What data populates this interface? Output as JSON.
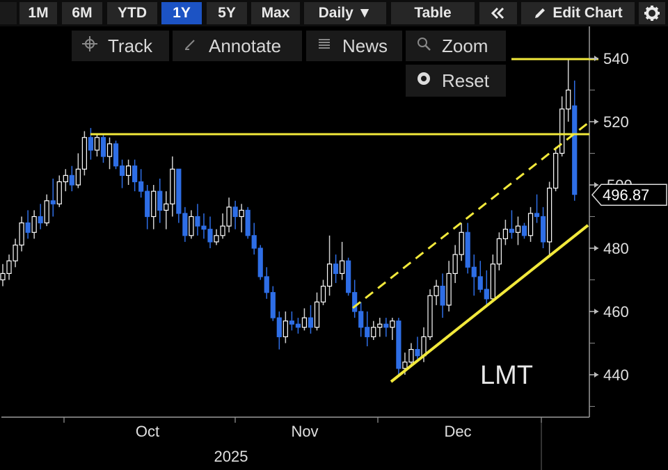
{
  "toolbar": {
    "ranges": [
      "1M",
      "6M",
      "YTD",
      "1Y",
      "5Y",
      "Max"
    ],
    "active_range": "1Y",
    "interval": "Daily ▼",
    "table_label": "Table",
    "collapse_icon": "double-chevron-left-icon",
    "edit_label": "Edit Chart",
    "settings_icon": "gear-icon"
  },
  "tools": {
    "track": "Track",
    "annotate": "Annotate",
    "news": "News",
    "zoom": "Zoom",
    "reset": "Reset"
  },
  "chart_data": {
    "type": "candlestick",
    "ticker_label": "LMT",
    "last_price": "496.87",
    "y_ticks": [
      440,
      460,
      480,
      500,
      520,
      540
    ],
    "x_months": [
      "Oct",
      "Nov",
      "Dec"
    ],
    "x_year": "2025",
    "candles": [
      [
        470,
        475,
        468,
        472
      ],
      [
        472,
        478,
        470,
        476
      ],
      [
        476,
        483,
        474,
        481
      ],
      [
        481,
        490,
        479,
        488
      ],
      [
        488,
        492,
        483,
        485
      ],
      [
        485,
        492,
        483,
        490
      ],
      [
        490,
        494,
        486,
        488
      ],
      [
        488,
        497,
        487,
        495
      ],
      [
        495,
        502,
        490,
        494
      ],
      [
        494,
        503,
        493,
        501
      ],
      [
        501,
        505,
        498,
        503
      ],
      [
        503,
        506,
        498,
        500
      ],
      [
        500,
        510,
        499,
        505
      ],
      [
        505,
        517,
        503,
        515
      ],
      [
        515,
        518,
        508,
        511
      ],
      [
        511,
        516,
        509,
        515
      ],
      [
        515,
        516,
        507,
        509
      ],
      [
        509,
        515,
        505,
        513
      ],
      [
        513,
        514,
        505,
        506
      ],
      [
        506,
        508,
        499,
        503
      ],
      [
        503,
        508,
        500,
        506
      ],
      [
        506,
        508,
        498,
        501
      ],
      [
        501,
        505,
        496,
        498
      ],
      [
        498,
        500,
        486,
        490
      ],
      [
        490,
        500,
        486,
        498
      ],
      [
        498,
        502,
        488,
        492
      ],
      [
        492,
        498,
        486,
        494
      ],
      [
        494,
        509,
        490,
        505
      ],
      [
        505,
        505,
        488,
        491
      ],
      [
        491,
        493,
        482,
        484
      ],
      [
        484,
        492,
        483,
        490
      ],
      [
        490,
        494,
        484,
        487
      ],
      [
        487,
        491,
        483,
        486
      ],
      [
        486,
        490,
        480,
        482
      ],
      [
        482,
        486,
        481,
        484
      ],
      [
        484,
        491,
        483,
        487
      ],
      [
        487,
        496,
        485,
        493
      ],
      [
        493,
        495,
        486,
        490
      ],
      [
        490,
        494,
        485,
        492
      ],
      [
        492,
        493,
        483,
        484
      ],
      [
        484,
        488,
        478,
        480
      ],
      [
        480,
        481,
        470,
        471
      ],
      [
        471,
        474,
        464,
        466
      ],
      [
        466,
        468,
        457,
        458
      ],
      [
        458,
        460,
        448,
        452
      ],
      [
        452,
        460,
        450,
        457
      ],
      [
        457,
        460,
        454,
        456
      ],
      [
        456,
        458,
        453,
        455
      ],
      [
        455,
        461,
        454,
        458
      ],
      [
        458,
        462,
        453,
        455
      ],
      [
        455,
        466,
        454,
        463
      ],
      [
        463,
        470,
        462,
        468
      ],
      [
        468,
        484,
        465,
        475
      ],
      [
        475,
        478,
        469,
        472
      ],
      [
        472,
        482,
        470,
        476
      ],
      [
        476,
        477,
        465,
        466
      ],
      [
        466,
        470,
        458,
        460
      ],
      [
        460,
        463,
        452,
        455
      ],
      [
        455,
        460,
        449,
        452
      ],
      [
        452,
        457,
        451,
        455
      ],
      [
        455,
        458,
        452,
        456
      ],
      [
        456,
        458,
        452,
        455
      ],
      [
        455,
        458,
        451,
        457
      ],
      [
        457,
        458,
        440,
        442
      ],
      [
        442,
        447,
        440,
        444
      ],
      [
        444,
        450,
        443,
        448
      ],
      [
        448,
        452,
        445,
        446
      ],
      [
        446,
        455,
        444,
        452
      ],
      [
        452,
        467,
        451,
        465
      ],
      [
        465,
        470,
        462,
        468
      ],
      [
        468,
        472,
        458,
        462
      ],
      [
        462,
        476,
        460,
        472
      ],
      [
        472,
        481,
        469,
        478
      ],
      [
        478,
        488,
        476,
        485
      ],
      [
        485,
        488,
        472,
        474
      ],
      [
        474,
        478,
        465,
        471
      ],
      [
        471,
        476,
        466,
        467
      ],
      [
        467,
        473,
        462,
        464
      ],
      [
        464,
        478,
        463,
        475
      ],
      [
        475,
        485,
        473,
        483
      ],
      [
        483,
        489,
        481,
        486
      ],
      [
        486,
        492,
        483,
        485
      ],
      [
        485,
        490,
        481,
        487
      ],
      [
        487,
        488,
        483,
        484
      ],
      [
        484,
        493,
        482,
        491
      ],
      [
        491,
        497,
        488,
        490
      ],
      [
        490,
        493,
        480,
        482
      ],
      [
        482,
        501,
        478,
        499
      ],
      [
        499,
        512,
        498,
        510
      ],
      [
        510,
        528,
        509,
        524
      ],
      [
        524,
        540,
        520,
        530
      ],
      [
        525,
        533,
        495,
        497
      ]
    ]
  },
  "colors": {
    "up": "#ffffff",
    "down": "#2e6ee6",
    "trendline": "#f2e93b",
    "background": "#000000"
  }
}
